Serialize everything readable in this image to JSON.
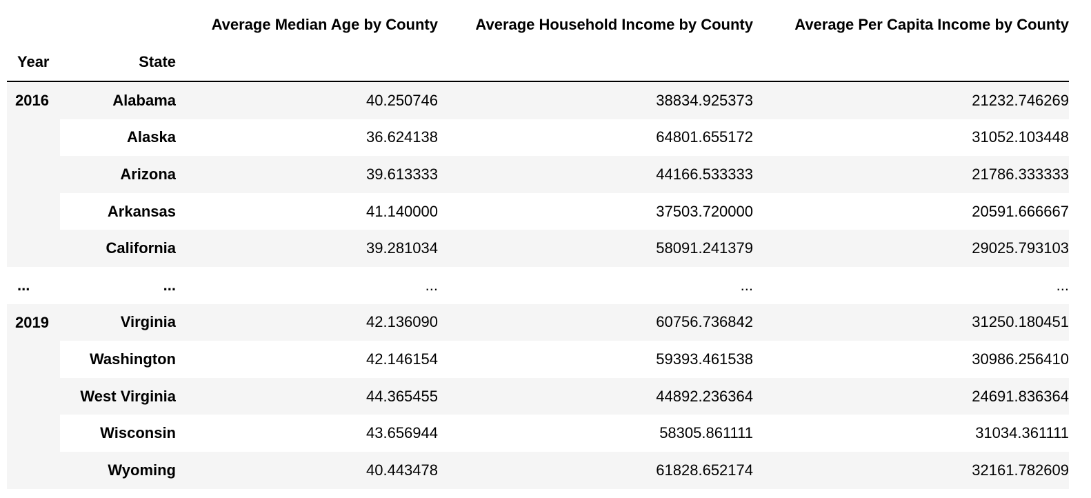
{
  "table": {
    "column_headers": [
      "Average Median Age by County",
      "Average Household Income by County",
      "Average Per Capita Income by County"
    ],
    "index_headers": [
      "Year",
      "State"
    ],
    "groups": [
      {
        "year": "2016",
        "rows": [
          {
            "state": "Alabama",
            "values": [
              "40.250746",
              "38834.925373",
              "21232.746269"
            ]
          },
          {
            "state": "Alaska",
            "values": [
              "36.624138",
              "64801.655172",
              "31052.103448"
            ]
          },
          {
            "state": "Arizona",
            "values": [
              "39.613333",
              "44166.533333",
              "21786.333333"
            ]
          },
          {
            "state": "Arkansas",
            "values": [
              "41.140000",
              "37503.720000",
              "20591.666667"
            ]
          },
          {
            "state": "California",
            "values": [
              "39.281034",
              "58091.241379",
              "29025.793103"
            ]
          }
        ]
      },
      {
        "year": "2019",
        "rows": [
          {
            "state": "Virginia",
            "values": [
              "42.136090",
              "60756.736842",
              "31250.180451"
            ]
          },
          {
            "state": "Washington",
            "values": [
              "42.146154",
              "59393.461538",
              "30986.256410"
            ]
          },
          {
            "state": "West Virginia",
            "values": [
              "44.365455",
              "44892.236364",
              "24691.836364"
            ]
          },
          {
            "state": "Wisconsin",
            "values": [
              "43.656944",
              "58305.861111",
              "31034.361111"
            ]
          },
          {
            "state": "Wyoming",
            "values": [
              "40.443478",
              "61828.652174",
              "32161.782609"
            ]
          }
        ]
      }
    ],
    "ellipsis_row": [
      "...",
      "...",
      "...",
      "...",
      "..."
    ],
    "colors": {
      "stripe": "#f5f5f5",
      "background": "#ffffff",
      "rule": "#000000"
    }
  }
}
